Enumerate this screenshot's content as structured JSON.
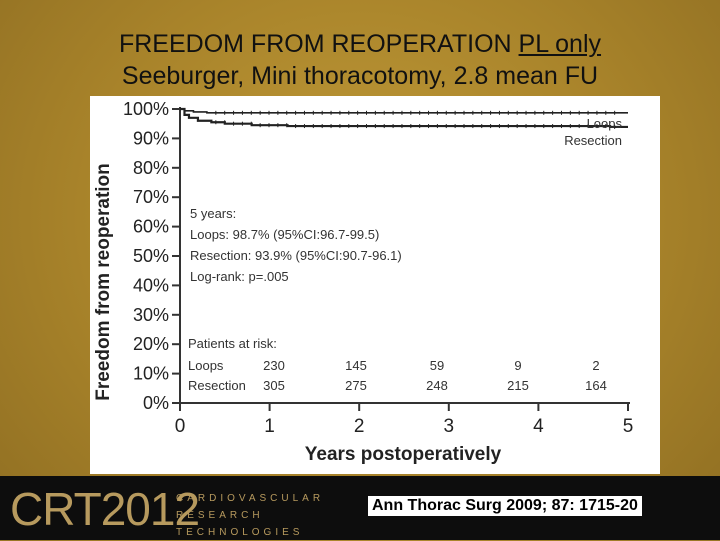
{
  "slide": {
    "title_line1_prefix": "FREEDOM FROM REOPERATION ",
    "title_line1_underlined": "PL only",
    "title_line2": "Seeburger, Mini thoracotomy, 2.8 mean FU"
  },
  "footer": {
    "logo_main": "CRT2012",
    "logo_sub": [
      "CARDIOVASCULAR",
      "RESEARCH",
      "TECHNOLOGIES"
    ],
    "citation": "Ann Thorac Surg 2009; 87: 1715-20"
  },
  "colors": {
    "background": "#b08a2a",
    "footer": "#0d0d0d",
    "logo": "#b79a5e",
    "curve": "#222222"
  },
  "chart_data": {
    "type": "line",
    "xlabel": "Years postoperatively",
    "ylabel": "Freedom from reoperation",
    "xlim": [
      0,
      5
    ],
    "ylim": [
      0,
      100
    ],
    "x_ticks": [
      0,
      1,
      2,
      3,
      4,
      5
    ],
    "y_ticks": [
      "0%",
      "10%",
      "20%",
      "30%",
      "40%",
      "50%",
      "60%",
      "70%",
      "80%",
      "90%",
      "100%"
    ],
    "y_tick_values": [
      0,
      10,
      20,
      30,
      40,
      50,
      60,
      70,
      80,
      90,
      100
    ],
    "series": [
      {
        "name": "Loops",
        "x": [
          0,
          0.05,
          0.15,
          0.3,
          0.6,
          5
        ],
        "y": [
          100,
          99.4,
          99.0,
          98.7,
          98.7,
          98.7
        ]
      },
      {
        "name": "Resection",
        "x": [
          0,
          0.05,
          0.1,
          0.2,
          0.35,
          0.5,
          0.8,
          1.2,
          4.6,
          4.8,
          5
        ],
        "y": [
          100,
          98.0,
          97.0,
          96.0,
          95.5,
          95.0,
          94.5,
          94.2,
          94.2,
          93.9,
          93.9
        ]
      }
    ],
    "annotation": [
      "5 years:",
      "Loops: 98.7% (95%CI:96.7-99.5)",
      "Resection: 93.9% (95%CI:90.7-96.1)",
      "Log-rank: p=.005"
    ],
    "at_risk": {
      "header": "Patients at risk:",
      "rows": [
        {
          "label": "Loops",
          "values": [
            "230",
            "145",
            "59",
            "9",
            "2"
          ]
        },
        {
          "label": "Resection",
          "values": [
            "305",
            "275",
            "248",
            "215",
            "164"
          ]
        }
      ]
    },
    "legend": [
      "Loops",
      "Resection"
    ],
    "grid": false
  }
}
